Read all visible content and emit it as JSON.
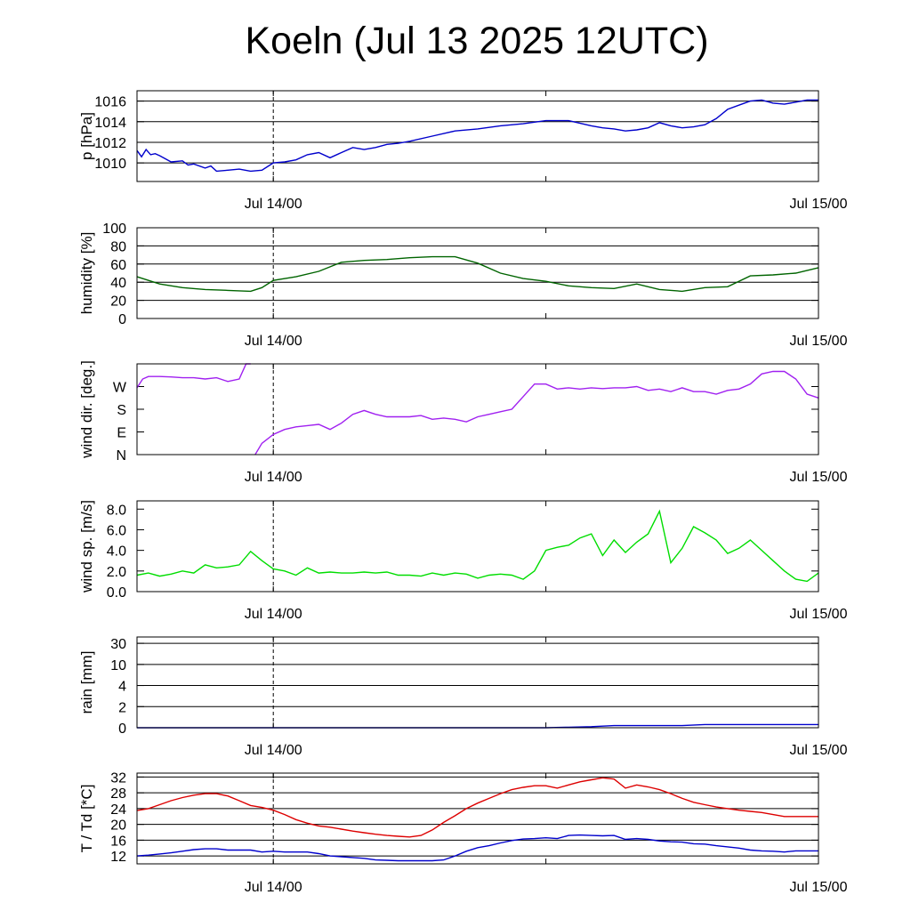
{
  "title": "Koeln (Jul 13 2025 12UTC)",
  "x_tick_labels": [
    "Jul 14/00",
    "Jul 15/00"
  ],
  "chart_data": [
    {
      "type": "line",
      "ylabel": "p [hPa]",
      "ylim": [
        1008.2,
        1017.0
      ],
      "yticks": [
        1010,
        1012,
        1014,
        1016
      ],
      "ytick_labels": [
        "1010",
        "1012",
        "1014",
        "1016"
      ],
      "grid": true,
      "x_hours": [
        0,
        0.4,
        0.8,
        1.2,
        1.6,
        2,
        3,
        4,
        4.5,
        5,
        6,
        6.5,
        7,
        8,
        9,
        10,
        11,
        12,
        13,
        14,
        15,
        16,
        17,
        18,
        19,
        20,
        21,
        22,
        23,
        24,
        26,
        28,
        30,
        32,
        34,
        36,
        38,
        40,
        41,
        42,
        43,
        44,
        45,
        46,
        47,
        48,
        49,
        50,
        51,
        52,
        53,
        54,
        55,
        56,
        57,
        58,
        59,
        60
      ],
      "series": [
        {
          "color": "#0000cc",
          "values": [
            1011.2,
            1010.6,
            1011.3,
            1010.8,
            1010.9,
            1010.7,
            1010.1,
            1010.2,
            1009.8,
            1009.9,
            1009.5,
            1009.7,
            1009.2,
            1009.3,
            1009.4,
            1009.2,
            1009.3,
            1010.0,
            1010.1,
            1010.3,
            1010.8,
            1011.0,
            1010.5,
            1011.0,
            1011.5,
            1011.3,
            1011.5,
            1011.8,
            1011.9,
            1012.1,
            1012.6,
            1013.1,
            1013.3,
            1013.6,
            1013.8,
            1014.1,
            1014.1,
            1013.6,
            1013.4,
            1013.3,
            1013.1,
            1013.2,
            1013.4,
            1013.9,
            1013.6,
            1013.4,
            1013.5,
            1013.7,
            1014.3,
            1015.2,
            1015.6,
            1016.0,
            1016.1,
            1015.8,
            1015.7,
            1015.9,
            1016.1,
            1016.1
          ]
        }
      ]
    },
    {
      "type": "line",
      "ylabel": "humidity [%]",
      "ylim": [
        0,
        100
      ],
      "yticks": [
        0,
        20,
        40,
        60,
        80,
        100
      ],
      "ytick_labels": [
        "0",
        "20",
        "40",
        "60",
        "80",
        "100"
      ],
      "grid": true,
      "x_hours": [
        0,
        2,
        4,
        6,
        8,
        10,
        11,
        12,
        14,
        16,
        18,
        20,
        22,
        24,
        26,
        28,
        30,
        32,
        34,
        36,
        38,
        40,
        42,
        44,
        46,
        48,
        50,
        52,
        54,
        56,
        58,
        60
      ],
      "series": [
        {
          "color": "#006400",
          "values": [
            46,
            38,
            34,
            32,
            31,
            30,
            34,
            42,
            46,
            52,
            62,
            64,
            65,
            67,
            68,
            68,
            61,
            50,
            44,
            41,
            36,
            34,
            33,
            38,
            32,
            30,
            34,
            35,
            47,
            48,
            50,
            56
          ]
        }
      ]
    },
    {
      "type": "line",
      "ylabel": "wind dir. [deg.]",
      "ylim": [
        0,
        360
      ],
      "yticks": [
        0,
        90,
        180,
        270
      ],
      "ytick_labels": [
        "N",
        "E",
        "S",
        "W"
      ],
      "grid": false,
      "x_hours": [
        0,
        0.5,
        1,
        2,
        3,
        4,
        5,
        6,
        7,
        8,
        9,
        9.6,
        10,
        10.4,
        11,
        12,
        13,
        14,
        15,
        16,
        17,
        18,
        19,
        20,
        21,
        22,
        23,
        24,
        25,
        26,
        27,
        28,
        29,
        30,
        31,
        32,
        33,
        34,
        35,
        36,
        37,
        38,
        39,
        40,
        41,
        42,
        43,
        44,
        45,
        46,
        47,
        48,
        49,
        50,
        51,
        52,
        53,
        54,
        55,
        56,
        57,
        58,
        59,
        60
      ],
      "series": [
        {
          "color": "#a020f0",
          "values": [
            265,
            300,
            310,
            310,
            308,
            305,
            305,
            300,
            305,
            290,
            300,
            360,
            360,
            0,
            45,
            80,
            100,
            110,
            115,
            120,
            100,
            125,
            160,
            175,
            160,
            150,
            150,
            150,
            155,
            140,
            145,
            140,
            130,
            150,
            160,
            170,
            180,
            230,
            280,
            280,
            260,
            265,
            260,
            265,
            262,
            265,
            265,
            270,
            255,
            260,
            250,
            265,
            250,
            250,
            240,
            255,
            260,
            280,
            320,
            330,
            330,
            300,
            240,
            225
          ]
        }
      ]
    },
    {
      "type": "line",
      "ylabel": "wind sp. [m/s]",
      "ylim": [
        0,
        8.8
      ],
      "yticks": [
        0,
        2,
        4,
        6,
        8
      ],
      "ytick_labels": [
        "0.0",
        "2.0",
        "4.0",
        "6.0",
        "8.0"
      ],
      "grid": false,
      "x_hours": [
        0,
        1,
        2,
        3,
        4,
        5,
        6,
        7,
        8,
        9,
        10,
        11,
        12,
        13,
        14,
        15,
        16,
        17,
        18,
        19,
        20,
        21,
        22,
        23,
        24,
        25,
        26,
        27,
        28,
        29,
        30,
        31,
        32,
        33,
        34,
        35,
        36,
        37,
        38,
        39,
        40,
        41,
        42,
        43,
        44,
        45,
        46,
        47,
        48,
        49,
        50,
        51,
        52,
        53,
        54,
        55,
        56,
        57,
        58,
        59,
        60
      ],
      "series": [
        {
          "color": "#00dd00",
          "values": [
            1.6,
            1.8,
            1.5,
            1.7,
            2.0,
            1.8,
            2.6,
            2.3,
            2.4,
            2.6,
            3.9,
            3.0,
            2.2,
            2.0,
            1.6,
            2.3,
            1.8,
            1.9,
            1.8,
            1.8,
            1.9,
            1.8,
            1.9,
            1.6,
            1.6,
            1.5,
            1.8,
            1.6,
            1.8,
            1.7,
            1.3,
            1.6,
            1.7,
            1.6,
            1.2,
            2.0,
            4.0,
            4.3,
            4.5,
            5.2,
            5.6,
            3.5,
            5.0,
            3.8,
            4.8,
            5.6,
            7.8,
            2.8,
            4.2,
            6.3,
            5.7,
            5.0,
            3.7,
            4.2,
            5.0,
            4.0,
            3.0,
            2.0,
            1.2,
            1.0,
            1.8
          ]
        }
      ]
    },
    {
      "type": "line",
      "ylabel": "rain [mm]",
      "ylim": [
        0,
        30
      ],
      "yticks": [
        0,
        2,
        4,
        10,
        30
      ],
      "ytick_labels": [
        "0",
        "2",
        "4",
        "10",
        "30"
      ],
      "grid": true,
      "x_hours": [
        0,
        30,
        36,
        38,
        40,
        42,
        44,
        46,
        48,
        50,
        52,
        54,
        56,
        58,
        60
      ],
      "series": [
        {
          "color": "#0000cc",
          "values": [
            0,
            0,
            0,
            0.05,
            0.1,
            0.2,
            0.2,
            0.2,
            0.2,
            0.3,
            0.3,
            0.3,
            0.3,
            0.3,
            0.3
          ]
        }
      ]
    },
    {
      "type": "line",
      "ylabel": "T / Td [*C]",
      "ylim": [
        10,
        33
      ],
      "yticks": [
        12,
        16,
        20,
        24,
        28,
        32
      ],
      "ytick_labels": [
        "12",
        "16",
        "20",
        "24",
        "28",
        "32"
      ],
      "grid": true,
      "x_hours": [
        0,
        1,
        2,
        3,
        4,
        5,
        6,
        7,
        8,
        9,
        10,
        11,
        12,
        13,
        14,
        15,
        16,
        17,
        18,
        19,
        20,
        21,
        22,
        23,
        24,
        25,
        26,
        27,
        28,
        29,
        30,
        31,
        32,
        33,
        34,
        35,
        36,
        37,
        38,
        39,
        40,
        41,
        42,
        43,
        44,
        45,
        46,
        47,
        48,
        49,
        50,
        51,
        52,
        53,
        54,
        55,
        56,
        57,
        58,
        59,
        60
      ],
      "series": [
        {
          "color": "#dd0000",
          "values": [
            23.5,
            24.0,
            25.0,
            26.0,
            26.8,
            27.4,
            27.8,
            27.8,
            27.2,
            26.0,
            24.8,
            24.3,
            23.6,
            22.5,
            21.2,
            20.3,
            19.6,
            19.3,
            18.8,
            18.3,
            17.9,
            17.5,
            17.2,
            17.0,
            16.8,
            17.2,
            18.6,
            20.5,
            22.2,
            24.0,
            25.4,
            26.6,
            27.8,
            28.8,
            29.4,
            29.8,
            29.8,
            29.2,
            30.0,
            30.8,
            31.3,
            31.8,
            31.5,
            29.2,
            30.0,
            29.5,
            28.8,
            27.8,
            26.6,
            25.6,
            25.0,
            24.4,
            24.0,
            23.6,
            23.3,
            23.0,
            22.5,
            22.0,
            22.0,
            22.0,
            22.0
          ]
        },
        {
          "color": "#0000cc",
          "values": [
            12.0,
            12.2,
            12.5,
            12.8,
            13.2,
            13.6,
            13.8,
            13.8,
            13.5,
            13.5,
            13.5,
            13.0,
            13.2,
            13.0,
            13.0,
            13.0,
            12.6,
            12.0,
            11.8,
            11.6,
            11.4,
            11.0,
            10.9,
            10.8,
            10.8,
            10.8,
            10.8,
            11.0,
            12.0,
            13.2,
            14.1,
            14.6,
            15.3,
            15.9,
            16.3,
            16.4,
            16.6,
            16.4,
            17.2,
            17.3,
            17.2,
            17.1,
            17.2,
            16.2,
            16.4,
            16.2,
            15.8,
            15.6,
            15.5,
            15.1,
            15.0,
            14.6,
            14.3,
            14.0,
            13.5,
            13.3,
            13.2,
            13.0,
            13.3,
            13.3,
            13.3
          ]
        }
      ]
    }
  ]
}
